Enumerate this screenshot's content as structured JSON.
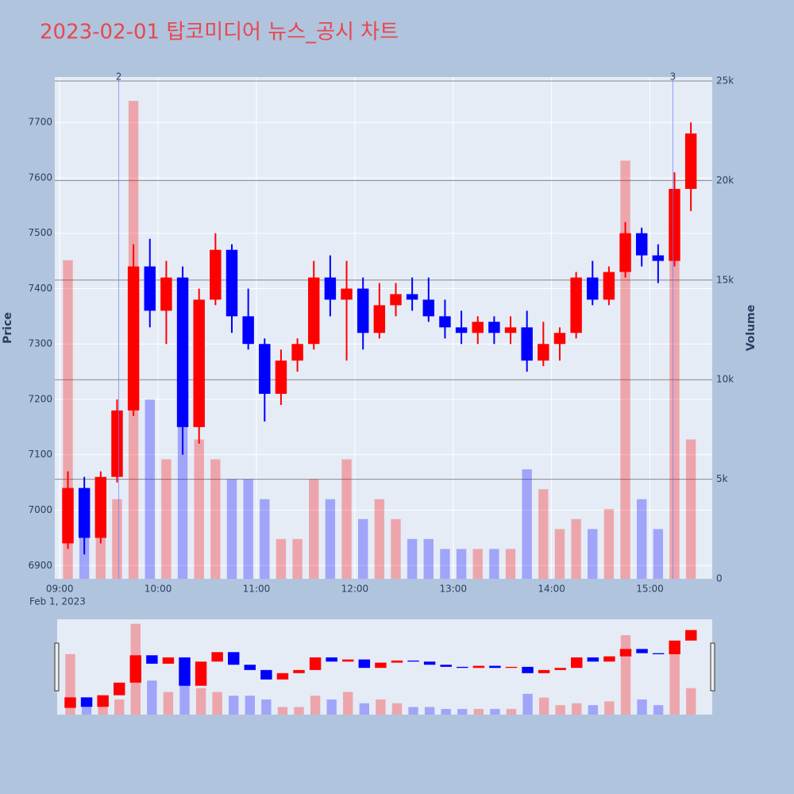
{
  "chart_data": {
    "type": "candlestick",
    "title": "2023-02-01 탑코미디어 뉴스_공시 차트",
    "y_label": "Price",
    "y2_label": "Volume",
    "date_label": "Feb 1, 2023",
    "increasing_color": "#ff0000",
    "decreasing_color": "#0000ff",
    "x": [
      "09:00",
      "09:10",
      "09:20",
      "09:30",
      "09:40",
      "09:50",
      "10:00",
      "10:10",
      "10:20",
      "10:30",
      "10:40",
      "10:50",
      "11:00",
      "11:10",
      "11:20",
      "11:30",
      "11:40",
      "11:50",
      "12:00",
      "12:10",
      "12:20",
      "12:30",
      "12:40",
      "12:50",
      "13:00",
      "13:10",
      "13:20",
      "13:30",
      "13:40",
      "13:50",
      "14:00",
      "14:10",
      "14:20",
      "14:30",
      "14:40",
      "14:50",
      "15:00",
      "15:10",
      "15:20"
    ],
    "open": [
      6940,
      7040,
      6950,
      7060,
      7180,
      7440,
      7360,
      7420,
      7150,
      7380,
      7470,
      7350,
      7300,
      7210,
      7270,
      7300,
      7420,
      7380,
      7400,
      7320,
      7370,
      7390,
      7380,
      7350,
      7330,
      7320,
      7340,
      7320,
      7330,
      7270,
      7300,
      7320,
      7420,
      7380,
      7430,
      7500,
      7460,
      7450,
      7580
    ],
    "high": [
      7070,
      7060,
      7070,
      7200,
      7480,
      7490,
      7450,
      7440,
      7400,
      7500,
      7480,
      7400,
      7310,
      7290,
      7310,
      7450,
      7460,
      7450,
      7420,
      7410,
      7410,
      7420,
      7420,
      7380,
      7360,
      7350,
      7350,
      7350,
      7360,
      7340,
      7330,
      7430,
      7450,
      7440,
      7520,
      7510,
      7480,
      7610,
      7700
    ],
    "low": [
      6930,
      6920,
      6940,
      7050,
      7170,
      7330,
      7300,
      7100,
      7120,
      7370,
      7320,
      7290,
      7160,
      7190,
      7250,
      7290,
      7350,
      7270,
      7290,
      7310,
      7350,
      7360,
      7340,
      7310,
      7300,
      7300,
      7300,
      7300,
      7250,
      7260,
      7270,
      7310,
      7370,
      7370,
      7420,
      7440,
      7410,
      7440,
      7540
    ],
    "close": [
      7040,
      6950,
      7060,
      7180,
      7440,
      7360,
      7420,
      7150,
      7380,
      7470,
      7350,
      7300,
      7210,
      7270,
      7300,
      7420,
      7380,
      7400,
      7320,
      7370,
      7390,
      7380,
      7350,
      7330,
      7320,
      7340,
      7320,
      7330,
      7270,
      7300,
      7320,
      7420,
      7380,
      7430,
      7500,
      7460,
      7450,
      7580,
      7680
    ],
    "volume": [
      16000,
      4000,
      3000,
      4000,
      24000,
      9000,
      6000,
      8000,
      7000,
      6000,
      5000,
      5000,
      4000,
      2000,
      2000,
      5000,
      4000,
      6000,
      3000,
      4000,
      3000,
      2000,
      2000,
      1500,
      1500,
      1500,
      1500,
      1500,
      5500,
      4500,
      2500,
      3000,
      2500,
      3500,
      21000,
      4000,
      2500,
      19000,
      7000
    ],
    "xlim": [
      "08:57",
      "15:38"
    ],
    "xticks": [
      "09:00",
      "10:00",
      "11:00",
      "12:00",
      "13:00",
      "14:00",
      "15:00"
    ],
    "ylim": [
      6876,
      7782
    ],
    "yticks": [
      6900,
      7000,
      7100,
      7200,
      7300,
      7400,
      7500,
      7600,
      7700
    ],
    "y2lim": [
      0,
      25200
    ],
    "y2ticks": [
      0,
      {
        "value": 5000,
        "label": "5k"
      },
      {
        "value": 10000,
        "label": "10k"
      },
      {
        "value": 15000,
        "label": "15k"
      },
      {
        "value": 20000,
        "label": "20k"
      },
      {
        "value": 25000,
        "label": "25k"
      }
    ],
    "annotations": [
      {
        "x": "09:36",
        "text": "2"
      },
      {
        "x": "15:14",
        "text": "3"
      }
    ],
    "grid": true
  }
}
